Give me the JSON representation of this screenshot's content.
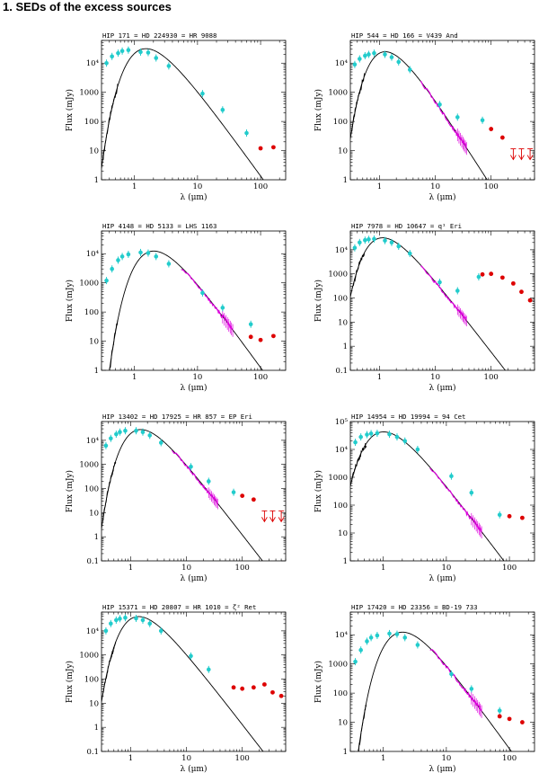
{
  "section_heading": "1. SEDs of the excess sources",
  "colors": {
    "photometry": "#22cccc",
    "spectrum": "#dd00dd",
    "excess": "#dd0000",
    "model": "#000000",
    "spectrum_uv": "#000000"
  },
  "chart_data": [
    {
      "type": "scatter",
      "title": "HIP 171 = HD 224930 = HR 9088",
      "xlabel": "λ (μm)",
      "ylabel": "Flux (mJy)",
      "xscale": "log",
      "yscale": "log",
      "xlim": [
        0.3,
        250
      ],
      "ylim": [
        1,
        60000
      ],
      "xticks": [
        "1",
        "10",
        "100"
      ],
      "yticks": [
        "1",
        "10",
        "100",
        "1000",
        "10⁴"
      ],
      "model": {
        "peak_wavelength": 1.2,
        "peak_flux": 28000
      },
      "photometry": [
        [
          0.36,
          10000
        ],
        [
          0.44,
          17000
        ],
        [
          0.55,
          22000
        ],
        [
          0.64,
          26000
        ],
        [
          0.8,
          28000
        ],
        [
          1.25,
          24000
        ],
        [
          1.65,
          23000
        ],
        [
          2.2,
          15000
        ],
        [
          3.5,
          8000
        ],
        [
          12,
          900
        ],
        [
          25,
          250
        ],
        [
          60,
          40
        ]
      ],
      "excess": [
        [
          100,
          12
        ],
        [
          160,
          13
        ]
      ],
      "upper_limits": [],
      "ir_spectrum": false
    },
    {
      "type": "scatter",
      "title": "HIP 544 = HD 166 = V439 And",
      "xlabel": "λ (μm)",
      "ylabel": "Flux (mJy)",
      "xscale": "log",
      "yscale": "log",
      "xlim": [
        0.3,
        600
      ],
      "ylim": [
        1,
        60000
      ],
      "xticks": [
        "1",
        "10",
        "100"
      ],
      "yticks": [
        "1",
        "10",
        "100",
        "1000",
        "10⁴"
      ],
      "model": {
        "peak_wavelength": 1.0,
        "peak_flux": 22000
      },
      "photometry": [
        [
          0.36,
          9000
        ],
        [
          0.44,
          14000
        ],
        [
          0.55,
          18000
        ],
        [
          0.64,
          20000
        ],
        [
          0.8,
          22000
        ],
        [
          1.25,
          20000
        ],
        [
          1.65,
          16000
        ],
        [
          2.2,
          11000
        ],
        [
          3.5,
          6000
        ],
        [
          12,
          380
        ],
        [
          25,
          140
        ],
        [
          70,
          110
        ]
      ],
      "excess": [
        [
          100,
          55
        ],
        [
          160,
          28
        ]
      ],
      "upper_limits": [
        [
          250,
          10
        ],
        [
          350,
          10
        ],
        [
          500,
          10
        ]
      ],
      "ir_spectrum": true
    },
    {
      "type": "scatter",
      "title": "HIP 4148 = HD 5133 = LHS 1163",
      "xlabel": "λ (μm)",
      "ylabel": "Flux (mJy)",
      "xscale": "log",
      "yscale": "log",
      "xlim": [
        0.3,
        250
      ],
      "ylim": [
        1,
        60000
      ],
      "xticks": [
        "1",
        "10",
        "100"
      ],
      "yticks": [
        "1",
        "10",
        "100",
        "1000",
        "10⁴"
      ],
      "model": {
        "peak_wavelength": 1.6,
        "peak_flux": 11000
      },
      "photometry": [
        [
          0.36,
          1200
        ],
        [
          0.44,
          3000
        ],
        [
          0.55,
          6000
        ],
        [
          0.64,
          8000
        ],
        [
          0.8,
          9500
        ],
        [
          1.25,
          11000
        ],
        [
          1.65,
          10500
        ],
        [
          2.2,
          8000
        ],
        [
          3.5,
          4500
        ],
        [
          12,
          450
        ],
        [
          25,
          140
        ],
        [
          70,
          38
        ]
      ],
      "excess": [
        [
          70,
          14
        ],
        [
          100,
          11
        ],
        [
          160,
          15
        ]
      ],
      "upper_limits": [],
      "ir_spectrum": true
    },
    {
      "type": "scatter",
      "title": "HIP 7978 = HD 10647 = q¹ Eri",
      "xlabel": "λ (μm)",
      "ylabel": "Flux (mJy)",
      "xscale": "log",
      "yscale": "log",
      "xlim": [
        0.3,
        600
      ],
      "ylim": [
        0.1,
        60000
      ],
      "xticks": [
        "1",
        "10",
        "100"
      ],
      "yticks": [
        "0.1",
        "1",
        "10",
        "100",
        "1000",
        "10⁴"
      ],
      "model": {
        "peak_wavelength": 0.9,
        "peak_flux": 28000
      },
      "photometry": [
        [
          0.36,
          12000
        ],
        [
          0.44,
          20000
        ],
        [
          0.55,
          25000
        ],
        [
          0.64,
          27000
        ],
        [
          0.8,
          28000
        ],
        [
          1.25,
          24000
        ],
        [
          1.65,
          20000
        ],
        [
          2.2,
          14000
        ],
        [
          3.5,
          7000
        ],
        [
          12,
          450
        ],
        [
          25,
          200
        ],
        [
          60,
          750
        ]
      ],
      "excess": [
        [
          70,
          950
        ],
        [
          100,
          1000
        ],
        [
          160,
          700
        ],
        [
          250,
          400
        ],
        [
          350,
          180
        ],
        [
          500,
          80
        ]
      ],
      "upper_limits": [],
      "ir_spectrum": true
    },
    {
      "type": "scatter",
      "title": "HIP 13402 = HD 17925 = HR 857 = EP Eri",
      "xlabel": "λ (μm)",
      "ylabel": "Flux (mJy)",
      "xscale": "log",
      "yscale": "log",
      "xlim": [
        0.3,
        600
      ],
      "ylim": [
        0.1,
        60000
      ],
      "xticks": [
        "1",
        "10",
        "100"
      ],
      "yticks": [
        "0.1",
        "1",
        "10",
        "100",
        "1000",
        "10⁴"
      ],
      "model": {
        "peak_wavelength": 1.2,
        "peak_flux": 25000
      },
      "photometry": [
        [
          0.36,
          6000
        ],
        [
          0.44,
          12000
        ],
        [
          0.55,
          18000
        ],
        [
          0.64,
          22000
        ],
        [
          0.8,
          25000
        ],
        [
          1.25,
          25000
        ],
        [
          1.65,
          22000
        ],
        [
          2.2,
          16000
        ],
        [
          3.5,
          8000
        ],
        [
          12,
          800
        ],
        [
          25,
          200
        ],
        [
          70,
          70
        ]
      ],
      "excess": [
        [
          100,
          50
        ],
        [
          160,
          35
        ]
      ],
      "upper_limits": [
        [
          250,
          10
        ],
        [
          350,
          10
        ],
        [
          500,
          10
        ]
      ],
      "ir_spectrum": true
    },
    {
      "type": "scatter",
      "title": "HIP 14954 = HD 19994 = 94 Cet",
      "xlabel": "λ (μm)",
      "ylabel": "Flux (mJy)",
      "xscale": "log",
      "yscale": "log",
      "xlim": [
        0.3,
        250
      ],
      "ylim": [
        1,
        100000
      ],
      "xticks": [
        "1",
        "10",
        "100"
      ],
      "yticks": [
        "1",
        "10",
        "100",
        "1000",
        "10⁴",
        "10⁵"
      ],
      "model": {
        "peak_wavelength": 0.8,
        "peak_flux": 38000
      },
      "photometry": [
        [
          0.36,
          18000
        ],
        [
          0.44,
          28000
        ],
        [
          0.55,
          34000
        ],
        [
          0.64,
          37000
        ],
        [
          0.8,
          38000
        ],
        [
          1.25,
          35000
        ],
        [
          1.65,
          28000
        ],
        [
          2.2,
          20000
        ],
        [
          3.5,
          10000
        ],
        [
          12,
          1100
        ],
        [
          25,
          280
        ],
        [
          70,
          45
        ]
      ],
      "excess": [
        [
          100,
          40
        ],
        [
          160,
          35
        ]
      ],
      "upper_limits": [],
      "ir_spectrum": true
    },
    {
      "type": "scatter",
      "title": "HIP 15371 = HD 20807 = HR 1010 = ζ² Ret",
      "xlabel": "λ (μm)",
      "ylabel": "Flux (mJy)",
      "xscale": "log",
      "yscale": "log",
      "xlim": [
        0.3,
        600
      ],
      "ylim": [
        0.1,
        60000
      ],
      "xticks": [
        "1",
        "10",
        "100"
      ],
      "yticks": [
        "0.1",
        "1",
        "10",
        "100",
        "1000",
        "10⁴"
      ],
      "model": {
        "peak_wavelength": 1.1,
        "peak_flux": 35000
      },
      "photometry": [
        [
          0.36,
          10000
        ],
        [
          0.44,
          20000
        ],
        [
          0.55,
          28000
        ],
        [
          0.64,
          32000
        ],
        [
          0.8,
          35000
        ],
        [
          1.25,
          33000
        ],
        [
          1.65,
          28000
        ],
        [
          2.2,
          20000
        ],
        [
          3.5,
          10000
        ],
        [
          12,
          900
        ],
        [
          25,
          250
        ]
      ],
      "excess": [
        [
          70,
          45
        ],
        [
          100,
          40
        ],
        [
          160,
          45
        ],
        [
          250,
          60
        ],
        [
          350,
          28
        ],
        [
          500,
          20
        ]
      ],
      "upper_limits": [],
      "ir_spectrum": false
    },
    {
      "type": "scatter",
      "title": "HIP 17420 = HD 23356 = BD-19 733",
      "xlabel": "λ (μm)",
      "ylabel": "Flux (mJy)",
      "xscale": "log",
      "yscale": "log",
      "xlim": [
        0.3,
        250
      ],
      "ylim": [
        1,
        60000
      ],
      "xticks": [
        "1",
        "10",
        "100"
      ],
      "yticks": [
        "1",
        "10",
        "100",
        "1000",
        "10⁴"
      ],
      "model": {
        "peak_wavelength": 1.6,
        "peak_flux": 11000
      },
      "photometry": [
        [
          0.36,
          1200
        ],
        [
          0.44,
          3000
        ],
        [
          0.55,
          6000
        ],
        [
          0.64,
          8000
        ],
        [
          0.8,
          9500
        ],
        [
          1.25,
          11000
        ],
        [
          1.65,
          10500
        ],
        [
          2.2,
          8000
        ],
        [
          3.5,
          4500
        ],
        [
          12,
          450
        ],
        [
          25,
          140
        ],
        [
          70,
          25
        ]
      ],
      "excess": [
        [
          70,
          16
        ],
        [
          100,
          13
        ],
        [
          160,
          10
        ]
      ],
      "upper_limits": [],
      "ir_spectrum": true
    }
  ]
}
